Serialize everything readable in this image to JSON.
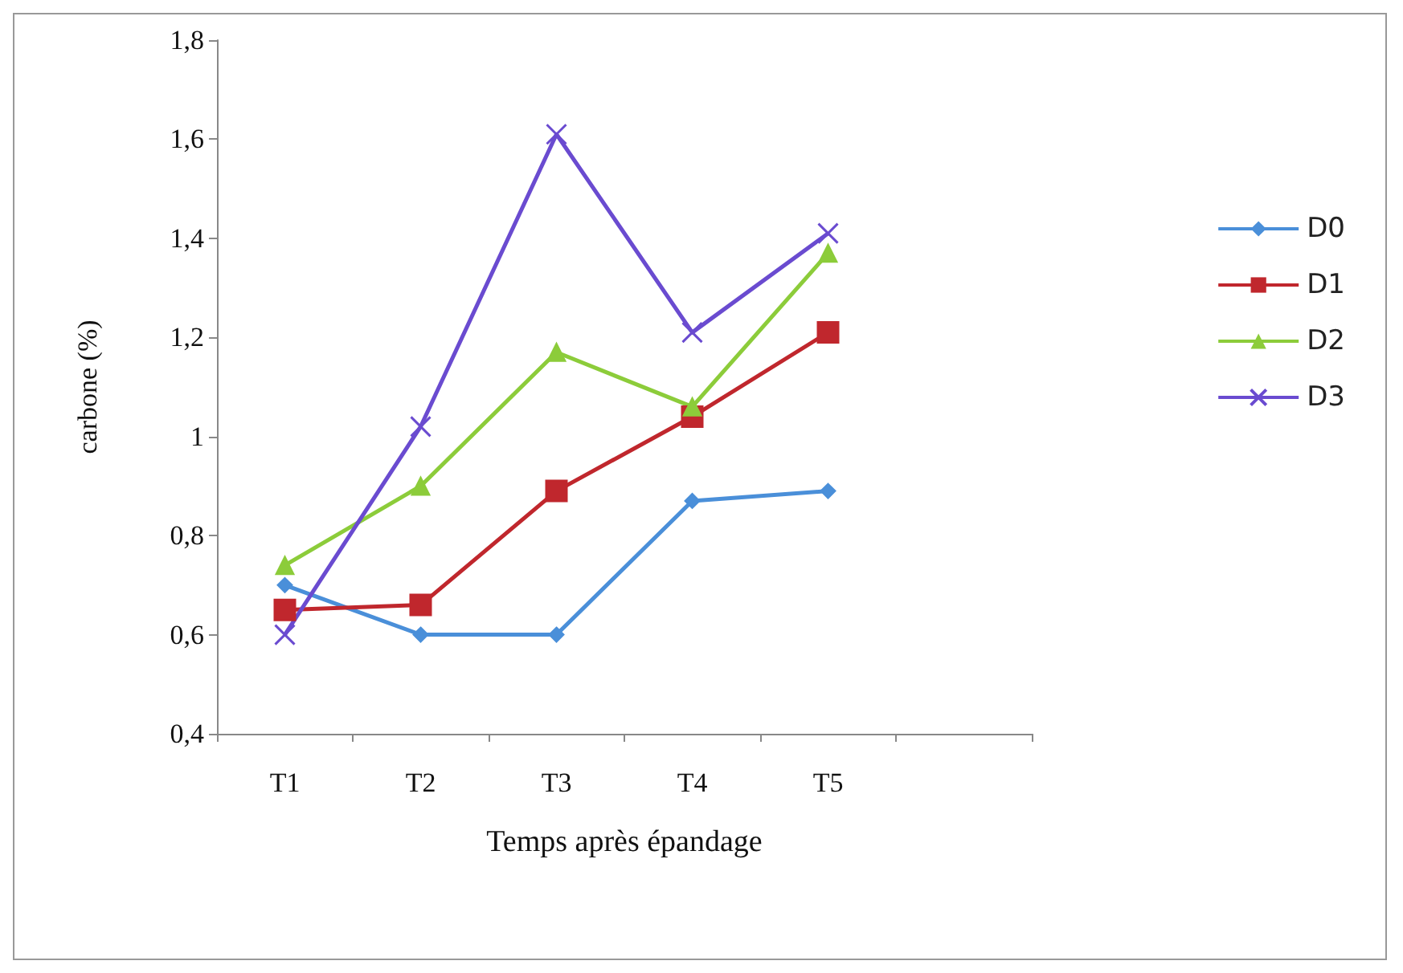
{
  "chart_data": {
    "type": "line",
    "xlabel": "Temps après épandage",
    "ylabel": "carbone (%)",
    "categories": [
      "T1",
      "T2",
      "T3",
      "T4",
      "T5",
      null
    ],
    "series": [
      {
        "name": "D0",
        "color": "#4a8fd9",
        "marker": "diamond",
        "values": [
          0.7,
          0.6,
          0.6,
          0.87,
          0.89,
          null
        ]
      },
      {
        "name": "D1",
        "color": "#c0272d",
        "marker": "square",
        "values": [
          0.65,
          0.66,
          0.89,
          1.04,
          1.21,
          null
        ]
      },
      {
        "name": "D2",
        "color": "#8ccc3a",
        "marker": "triangle",
        "values": [
          0.74,
          0.9,
          1.17,
          1.06,
          1.37,
          null
        ]
      },
      {
        "name": "D3",
        "color": "#6a4bd0",
        "marker": "cross",
        "values": [
          0.6,
          1.02,
          1.61,
          1.21,
          1.41,
          null
        ]
      }
    ],
    "ylim": [
      0.4,
      1.8
    ],
    "yticks": [
      {
        "value": 0.4,
        "label": "0,4"
      },
      {
        "value": 0.6,
        "label": "0,6"
      },
      {
        "value": 0.8,
        "label": "0,8"
      },
      1,
      {
        "value": 1.2,
        "label": "1,2"
      },
      {
        "value": 1.4,
        "label": "1,4"
      },
      {
        "value": 1.6,
        "label": "1,6"
      },
      {
        "value": 1.8,
        "label": "1,8"
      }
    ],
    "grid": false,
    "legend": "right",
    "line_style": "solid"
  }
}
